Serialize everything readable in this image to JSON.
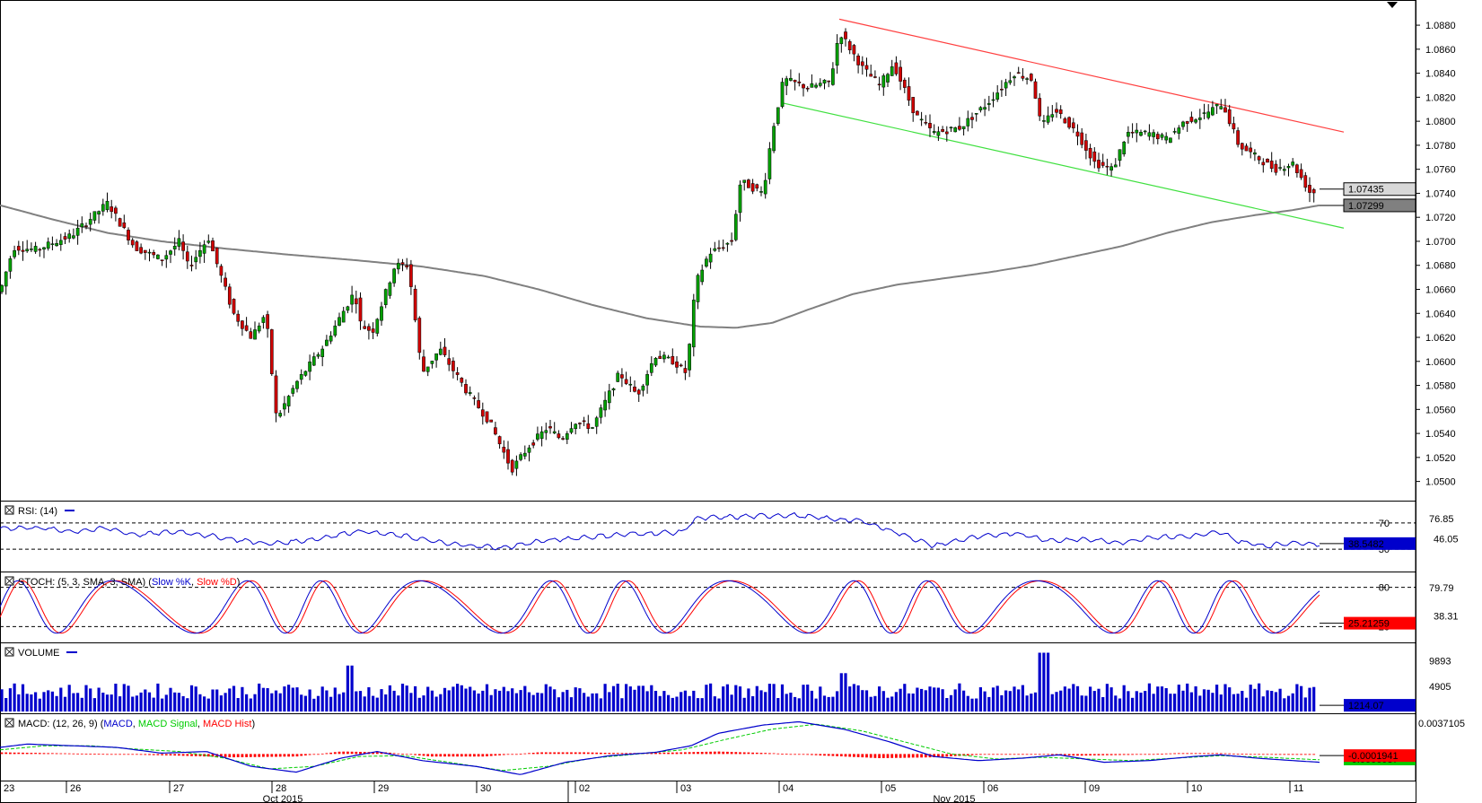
{
  "chart_data": {
    "type": "candlestick",
    "price_panel": {
      "y_ticks": [
        "1.0880",
        "1.0860",
        "1.0840",
        "1.0820",
        "1.0800",
        "1.0780",
        "1.0760",
        "1.0740",
        "1.0720",
        "1.0700",
        "1.0680",
        "1.0660",
        "1.0640",
        "1.0620",
        "1.0600",
        "1.0580",
        "1.0560",
        "1.0540",
        "1.0520",
        "1.0500"
      ],
      "ylim": [
        1.049,
        1.0895
      ],
      "last_price_label": "1.07435",
      "ma_value_label": "1.07299",
      "colors": {
        "up": "#00a000",
        "down": "#d00000",
        "moving_average": "#808080",
        "upper_channel": "#ff4040",
        "lower_channel": "#40e040"
      },
      "upper_channel": [
        [
          935,
          1.0885
        ],
        [
          1497,
          1.0791
        ]
      ],
      "lower_channel": [
        [
          873,
          1.0815
        ],
        [
          1497,
          1.0711
        ]
      ],
      "moving_average": [
        [
          0,
          1.073
        ],
        [
          60,
          1.0718
        ],
        [
          120,
          1.0707
        ],
        [
          180,
          1.07
        ],
        [
          250,
          1.0694
        ],
        [
          320,
          1.0689
        ],
        [
          400,
          1.0684
        ],
        [
          470,
          1.0679
        ],
        [
          540,
          1.0671
        ],
        [
          600,
          1.066
        ],
        [
          660,
          1.0647
        ],
        [
          720,
          1.0636
        ],
        [
          780,
          1.0629
        ],
        [
          820,
          1.0628
        ],
        [
          860,
          1.0632
        ],
        [
          900,
          1.0643
        ],
        [
          950,
          1.0656
        ],
        [
          1000,
          1.0664
        ],
        [
          1050,
          1.0669
        ],
        [
          1100,
          1.0674
        ],
        [
          1150,
          1.068
        ],
        [
          1200,
          1.0688
        ],
        [
          1250,
          1.0696
        ],
        [
          1300,
          1.0707
        ],
        [
          1350,
          1.0716
        ],
        [
          1400,
          1.0722
        ],
        [
          1440,
          1.0726
        ],
        [
          1470,
          1.073
        ]
      ],
      "anchors": [
        [
          0,
          1.0658
        ],
        [
          15,
          1.0695
        ],
        [
          40,
          1.0693
        ],
        [
          80,
          1.0705
        ],
        [
          120,
          1.0732
        ],
        [
          150,
          1.0695
        ],
        [
          180,
          1.0685
        ],
        [
          200,
          1.07
        ],
        [
          210,
          1.0678
        ],
        [
          232,
          1.0703
        ],
        [
          260,
          1.064
        ],
        [
          280,
          1.062
        ],
        [
          296,
          1.064
        ],
        [
          308,
          1.0552
        ],
        [
          330,
          1.0582
        ],
        [
          360,
          1.0612
        ],
        [
          395,
          1.0658
        ],
        [
          402,
          1.063
        ],
        [
          415,
          1.0625
        ],
        [
          440,
          1.068
        ],
        [
          455,
          1.068
        ],
        [
          470,
          1.059
        ],
        [
          490,
          1.061
        ],
        [
          520,
          1.0575
        ],
        [
          545,
          1.055
        ],
        [
          570,
          1.051
        ],
        [
          590,
          1.053
        ],
        [
          610,
          1.0545
        ],
        [
          625,
          1.0535
        ],
        [
          640,
          1.055
        ],
        [
          660,
          1.0545
        ],
        [
          690,
          1.059
        ],
        [
          710,
          1.0572
        ],
        [
          730,
          1.0605
        ],
        [
          750,
          1.06
        ],
        [
          765,
          1.059
        ],
        [
          775,
          1.0665
        ],
        [
          790,
          1.069
        ],
        [
          815,
          1.07
        ],
        [
          825,
          1.075
        ],
        [
          850,
          1.074
        ],
        [
          860,
          1.079
        ],
        [
          873,
          1.0835
        ],
        [
          900,
          1.0828
        ],
        [
          925,
          1.0833
        ],
        [
          935,
          1.0875
        ],
        [
          960,
          1.0845
        ],
        [
          980,
          1.083
        ],
        [
          995,
          1.0848
        ],
        [
          1020,
          1.0805
        ],
        [
          1040,
          1.079
        ],
        [
          1070,
          1.0795
        ],
        [
          1100,
          1.0815
        ],
        [
          1130,
          1.084
        ],
        [
          1150,
          1.0835
        ],
        [
          1160,
          1.0795
        ],
        [
          1175,
          1.081
        ],
        [
          1200,
          1.079
        ],
        [
          1220,
          1.0765
        ],
        [
          1240,
          1.076
        ],
        [
          1255,
          1.079
        ],
        [
          1280,
          1.079
        ],
        [
          1300,
          1.0785
        ],
        [
          1320,
          1.08
        ],
        [
          1340,
          1.0805
        ],
        [
          1362,
          1.0815
        ],
        [
          1380,
          1.078
        ],
        [
          1400,
          1.077
        ],
        [
          1420,
          1.076
        ],
        [
          1440,
          1.0765
        ],
        [
          1460,
          1.074
        ],
        [
          1470,
          1.0743
        ]
      ]
    },
    "rsi": {
      "label": "RSI: (14)",
      "color": "#0000cc",
      "levels": [
        "70",
        "30"
      ],
      "scale_label": "76.85",
      "hidden_scale_label": "46.05",
      "current": "38.5482",
      "ylim": [
        0,
        100
      ],
      "anchors": [
        [
          0,
          62
        ],
        [
          40,
          63
        ],
        [
          80,
          57
        ],
        [
          120,
          62
        ],
        [
          150,
          52
        ],
        [
          200,
          57
        ],
        [
          250,
          47
        ],
        [
          300,
          38
        ],
        [
          350,
          45
        ],
        [
          400,
          58
        ],
        [
          450,
          50
        ],
        [
          500,
          38
        ],
        [
          560,
          32
        ],
        [
          600,
          42
        ],
        [
          650,
          48
        ],
        [
          700,
          53
        ],
        [
          760,
          56
        ],
        [
          775,
          77
        ],
        [
          830,
          80
        ],
        [
          880,
          82
        ],
        [
          930,
          76
        ],
        [
          960,
          73
        ],
        [
          1000,
          55
        ],
        [
          1040,
          35
        ],
        [
          1080,
          47
        ],
        [
          1130,
          55
        ],
        [
          1170,
          43
        ],
        [
          1210,
          45
        ],
        [
          1250,
          40
        ],
        [
          1280,
          48
        ],
        [
          1330,
          50
        ],
        [
          1360,
          56
        ],
        [
          1380,
          42
        ],
        [
          1410,
          35
        ],
        [
          1440,
          40
        ],
        [
          1470,
          38
        ]
      ]
    },
    "stoch": {
      "label": "STOCH: (5, 3, SMA, 3, SMA)",
      "k_label": "Slow %K",
      "d_label": "Slow %D",
      "k_color": "#0000cc",
      "d_color": "#ff0000",
      "levels": [
        "80",
        "20"
      ],
      "scale_label": "79.79",
      "hidden_scale_label": "38.31",
      "current": "25.21259",
      "ylim": [
        0,
        100
      ]
    },
    "volume": {
      "label": "VOLUME",
      "color": "#0000cc",
      "scale_labels": [
        "9893",
        "4905"
      ],
      "current": "1214.07",
      "ymax": 13000
    },
    "macd": {
      "label": "MACD: (12, 26, 9)",
      "macd_label": "MACD",
      "signal_label": "MACD Signal",
      "hist_label": "MACD Hist",
      "macd_color": "#0000cc",
      "signal_color": "#00cc00",
      "hist_color": "#ff0000",
      "scale_label": "0.0037105",
      "current": "-0.0001941",
      "hidden_current": "-0.0006087",
      "ylim": [
        -0.003,
        0.0046
      ],
      "macd_anchors": [
        [
          0,
          0.0008
        ],
        [
          30,
          0.0012
        ],
        [
          80,
          0.001
        ],
        [
          130,
          0.0008
        ],
        [
          180,
          0.0001
        ],
        [
          230,
          0.0003
        ],
        [
          280,
          -0.0015
        ],
        [
          330,
          -0.0022
        ],
        [
          380,
          -0.0005
        ],
        [
          420,
          0.0003
        ],
        [
          470,
          -0.0008
        ],
        [
          530,
          -0.0015
        ],
        [
          580,
          -0.0025
        ],
        [
          630,
          -0.001
        ],
        [
          680,
          -0.0002
        ],
        [
          730,
          0.0002
        ],
        [
          770,
          0.001
        ],
        [
          800,
          0.0025
        ],
        [
          850,
          0.0035
        ],
        [
          890,
          0.0039
        ],
        [
          940,
          0.003
        ],
        [
          990,
          0.0015
        ],
        [
          1040,
          -0.0003
        ],
        [
          1090,
          -0.0008
        ],
        [
          1140,
          -0.0005
        ],
        [
          1180,
          -0.0001
        ],
        [
          1230,
          -0.001
        ],
        [
          1280,
          -0.0008
        ],
        [
          1330,
          -0.0003
        ],
        [
          1360,
          -0.0001
        ],
        [
          1400,
          -0.0005
        ],
        [
          1440,
          -0.0008
        ],
        [
          1470,
          -0.001
        ]
      ],
      "signal_anchors": [
        [
          0,
          0.0005
        ],
        [
          50,
          0.001
        ],
        [
          100,
          0.001
        ],
        [
          150,
          0.0006
        ],
        [
          200,
          0.0003
        ],
        [
          250,
          -0.0005
        ],
        [
          300,
          -0.0018
        ],
        [
          350,
          -0.0015
        ],
        [
          400,
          -0.0003
        ],
        [
          450,
          -0.0002
        ],
        [
          500,
          -0.001
        ],
        [
          560,
          -0.002
        ],
        [
          610,
          -0.0015
        ],
        [
          660,
          -0.0005
        ],
        [
          710,
          0.0
        ],
        [
          760,
          0.0005
        ],
        [
          810,
          0.0018
        ],
        [
          860,
          0.003
        ],
        [
          910,
          0.0036
        ],
        [
          960,
          0.0028
        ],
        [
          1010,
          0.0014
        ],
        [
          1060,
          0.0
        ],
        [
          1110,
          -0.0006
        ],
        [
          1160,
          -0.0004
        ],
        [
          1210,
          -0.0006
        ],
        [
          1260,
          -0.0008
        ],
        [
          1310,
          -0.0005
        ],
        [
          1360,
          -0.0002
        ],
        [
          1410,
          -0.0004
        ],
        [
          1470,
          -0.0007
        ]
      ],
      "hist_anchors": [
        [
          0,
          0.0002
        ],
        [
          60,
          0.0001
        ],
        [
          120,
          0.0
        ],
        [
          200,
          -0.0002
        ],
        [
          260,
          -0.0004
        ],
        [
          330,
          -0.0003
        ],
        [
          380,
          0.0003
        ],
        [
          430,
          0.0002
        ],
        [
          480,
          -0.0003
        ],
        [
          540,
          -0.0003
        ],
        [
          600,
          0.0002
        ],
        [
          650,
          0.0002
        ],
        [
          700,
          0.0001
        ],
        [
          760,
          0.0002
        ],
        [
          800,
          0.0003
        ],
        [
          860,
          0.0001
        ],
        [
          920,
          -0.0002
        ],
        [
          980,
          -0.0005
        ],
        [
          1040,
          -0.0004
        ],
        [
          1090,
          -0.0001
        ],
        [
          1140,
          0.0
        ],
        [
          1200,
          -0.0002
        ],
        [
          1260,
          -0.0001
        ],
        [
          1310,
          0.0001
        ],
        [
          1360,
          0.0001
        ],
        [
          1420,
          -0.0001
        ],
        [
          1470,
          -0.0001
        ]
      ]
    },
    "x_labels": [
      {
        "text": "23",
        "x": 4
      },
      {
        "text": "26",
        "x": 78
      },
      {
        "text": "27",
        "x": 193
      },
      {
        "text": "28",
        "x": 307
      },
      {
        "text": "29",
        "x": 421
      },
      {
        "text": "30",
        "x": 535
      },
      {
        "text": "02",
        "x": 645
      },
      {
        "text": "03",
        "x": 758
      },
      {
        "text": "04",
        "x": 872
      },
      {
        "text": "05",
        "x": 986
      },
      {
        "text": "06",
        "x": 1100
      },
      {
        "text": "09",
        "x": 1213
      },
      {
        "text": "10",
        "x": 1327
      },
      {
        "text": "11",
        "x": 1441
      }
    ],
    "month_labels": [
      {
        "text": "Oct 2015",
        "x": 315
      },
      {
        "text": "Nov 2015",
        "x": 1063
      }
    ]
  }
}
